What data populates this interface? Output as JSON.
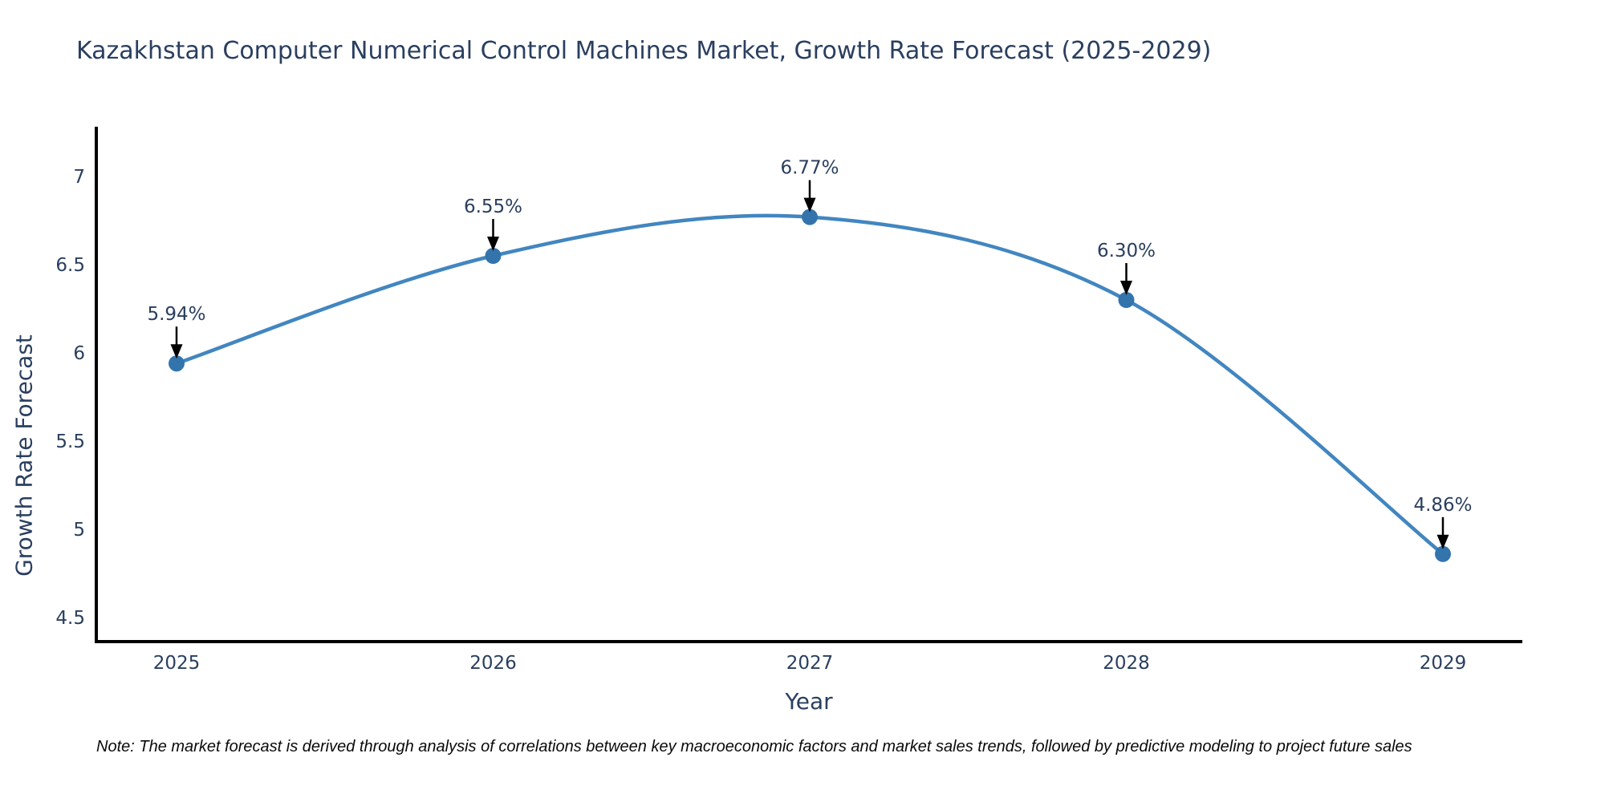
{
  "chart_data": {
    "type": "line",
    "line_shape": "spline",
    "title": "Kazakhstan Computer Numerical Control Machines Market, Growth Rate Forecast (2025-2029)",
    "xlabel": "Year",
    "ylabel": "Growth Rate Forecast",
    "categories": [
      "2025",
      "2026",
      "2027",
      "2028",
      "2029"
    ],
    "values": [
      5.94,
      6.55,
      6.77,
      6.3,
      4.86
    ],
    "point_labels": [
      "5.94%",
      "6.55%",
      "6.77%",
      "6.30%",
      "4.86%"
    ],
    "yticks": [
      4.5,
      5,
      5.5,
      6,
      6.5,
      7
    ],
    "ylim": [
      4.36,
      7.29
    ],
    "grid": false,
    "legend": false,
    "note": "Note: The market forecast is derived through analysis of correlations between key macroeconomic factors and market sales trends, followed by predictive modeling to project future sales",
    "colors": {
      "line": "#4286c0",
      "marker": "#3474ad",
      "axis": "#000000",
      "text": "#2a3f5f",
      "arrow": "#000000",
      "note_text": "#0a0a0a",
      "background": "#ffffff"
    }
  }
}
